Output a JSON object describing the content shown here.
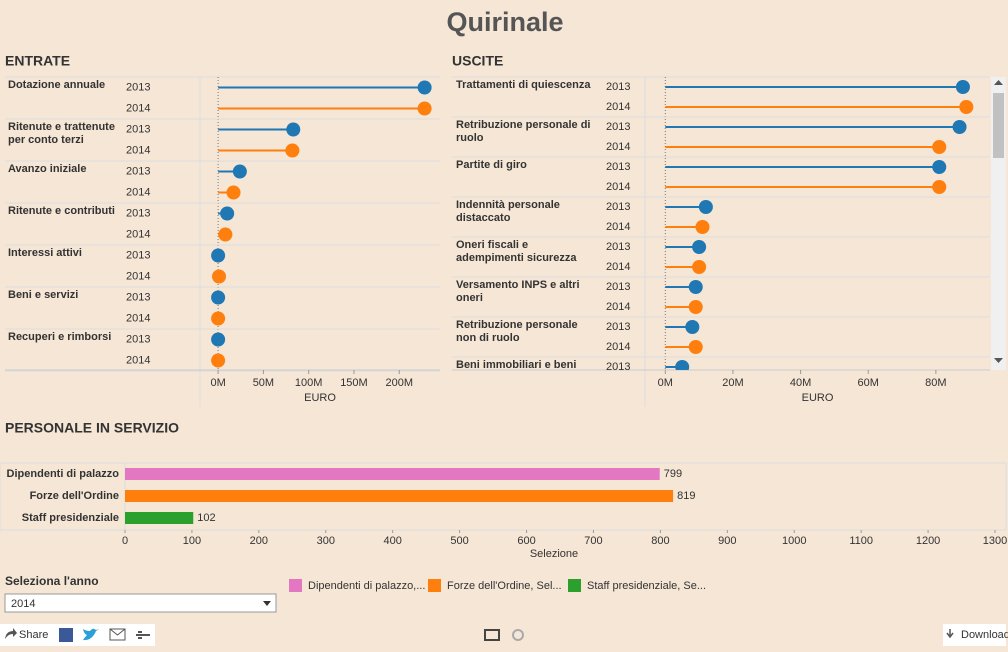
{
  "title": "Quirinale",
  "chart_data": [
    {
      "type": "lollipop",
      "title": "ENTRATE",
      "categories": [
        "Dotazione annuale",
        "Ritenute e trattenute per conto terzi",
        "Avanzo iniziale",
        "Ritenute e contributi",
        "Interessi attivi",
        "Beni e servizi",
        "Recuperi e rimborsi"
      ],
      "series": [
        {
          "name": "2013",
          "color": "#1f77b4",
          "values": [
            228,
            83,
            24,
            10,
            0,
            0,
            0
          ]
        },
        {
          "name": "2014",
          "color": "#ff7f0e",
          "values": [
            228,
            82,
            17,
            8,
            1,
            0,
            0
          ]
        }
      ],
      "xlabel": "EURO",
      "xlim": [
        -20,
        245
      ],
      "xticks": [
        {
          "value": 0,
          "label": "0M"
        },
        {
          "value": 50,
          "label": "50M"
        },
        {
          "value": 100,
          "label": "100M"
        },
        {
          "value": 150,
          "label": "150M"
        },
        {
          "value": 200,
          "label": "200M"
        }
      ]
    },
    {
      "type": "lollipop",
      "title": "USCITE",
      "categories": [
        "Trattamenti di quiescenza",
        "Retribuzione personale di ruolo",
        "Partite di giro",
        "Indennità personale distaccato",
        "Oneri fiscali e adempimenti sicurezza",
        "Versamento INPS e altri oneri",
        "Retribuzione personale non di ruolo",
        "Beni immobiliari e beni"
      ],
      "series": [
        {
          "name": "2013",
          "color": "#1f77b4",
          "values": [
            88,
            87,
            81,
            12,
            10,
            9,
            8,
            5
          ]
        },
        {
          "name": "2014",
          "color": "#ff7f0e",
          "values": [
            89,
            81,
            81,
            11,
            10,
            9,
            9,
            null
          ]
        }
      ],
      "xlabel": "EURO",
      "xlim": [
        -6,
        96
      ],
      "xticks": [
        {
          "value": 0,
          "label": "0M"
        },
        {
          "value": 20,
          "label": "20M"
        },
        {
          "value": 40,
          "label": "40M"
        },
        {
          "value": 60,
          "label": "60M"
        },
        {
          "value": 80,
          "label": "80M"
        }
      ]
    },
    {
      "type": "bar",
      "title": "PERSONALE IN SERVIZIO",
      "categories": [
        "Dipendenti di palazzo",
        "Forze dell'Ordine",
        "Staff presidenziale"
      ],
      "values": [
        799,
        819,
        102
      ],
      "colors": [
        "#e377c2",
        "#ff7f0e",
        "#2ca02c"
      ],
      "legend": [
        "Dipendenti di palazzo,...",
        "Forze dell'Ordine, Sel...",
        "Staff presidenziale, Se..."
      ],
      "xlabel": "Selezione",
      "xlim": [
        0,
        1300
      ],
      "xticks": [
        0,
        100,
        200,
        300,
        400,
        500,
        600,
        700,
        800,
        900,
        1000,
        1100,
        1200,
        1300
      ]
    }
  ],
  "filter": {
    "label": "Seleziona l'anno",
    "value": "2014"
  },
  "toolbar": {
    "share": "Share",
    "download": "Download"
  }
}
